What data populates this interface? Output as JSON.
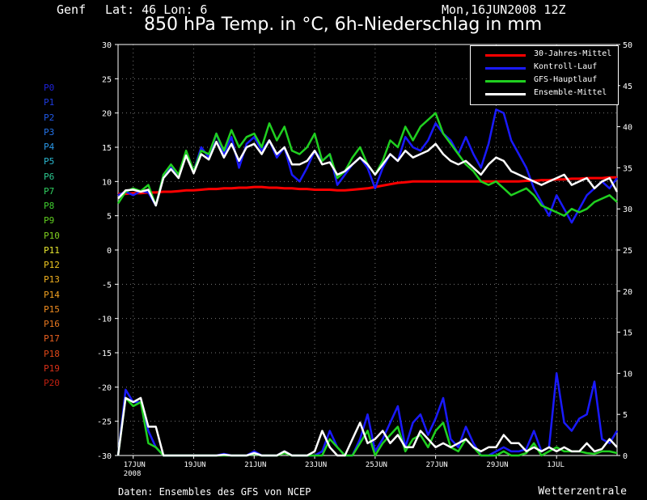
{
  "header": {
    "location": "Genf",
    "coords": "Lat: 46 Lon: 6",
    "run": "Mon,16JUN2008 12Z"
  },
  "title": "850 hPa Temp. in °C, 6h-Niederschlag in mm",
  "footer": {
    "source": "Daten: Ensembles des GFS von NCEP",
    "brand": "Wetterzentrale"
  },
  "members": [
    {
      "label": "P0",
      "color": "#1e22d8"
    },
    {
      "label": "P1",
      "color": "#1e3ce0"
    },
    {
      "label": "P2",
      "color": "#2058e6"
    },
    {
      "label": "P3",
      "color": "#2474ea"
    },
    {
      "label": "P4",
      "color": "#2a98e8"
    },
    {
      "label": "P5",
      "color": "#2ab8d0"
    },
    {
      "label": "P6",
      "color": "#2cc890"
    },
    {
      "label": "P7",
      "color": "#30d060"
    },
    {
      "label": "P8",
      "color": "#40d030"
    },
    {
      "label": "P9",
      "color": "#60d020"
    },
    {
      "label": "P10",
      "color": "#80d020"
    },
    {
      "label": "P11",
      "color": "#e8e830"
    },
    {
      "label": "P12",
      "color": "#f0c820"
    },
    {
      "label": "P13",
      "color": "#f0b020"
    },
    {
      "label": "P14",
      "color": "#f0a020"
    },
    {
      "label": "P15",
      "color": "#f08c20"
    },
    {
      "label": "P16",
      "color": "#e87820"
    },
    {
      "label": "P17",
      "color": "#e86020"
    },
    {
      "label": "P18",
      "color": "#e04818"
    },
    {
      "label": "P19",
      "color": "#d83018"
    },
    {
      "label": "P20",
      "color": "#c02010"
    }
  ],
  "legend": [
    {
      "label": "30-Jahres-Mittel",
      "color": "#ff0000"
    },
    {
      "label": "Kontroll-Lauf",
      "color": "#1a1aff"
    },
    {
      "label": "GFS-Hauptlauf",
      "color": "#20d020"
    },
    {
      "label": "Ensemble-Mittel",
      "color": "#ffffff"
    }
  ],
  "chart_data": {
    "type": "line",
    "title": "850 hPa Temp. in °C, 6h-Niederschlag in mm",
    "x_ticks": [
      "17JUN",
      "19JUN",
      "21JUN",
      "23JUN",
      "25JUN",
      "27JUN",
      "29JUN",
      "1JUL"
    ],
    "x_tick_sub": "2008",
    "y_left": {
      "min": -30,
      "max": 30,
      "step": 5
    },
    "y_right": {
      "min": 0,
      "max": 50,
      "step": 5
    },
    "grid": true,
    "steps_per_day": 4,
    "series": [
      {
        "name": "30-Jahres-Mittel",
        "axis": "left",
        "values": [
          8.2,
          8.2,
          8.3,
          8.3,
          8.4,
          8.4,
          8.5,
          8.5,
          8.6,
          8.7,
          8.7,
          8.8,
          8.9,
          8.9,
          9.0,
          9.0,
          9.1,
          9.1,
          9.2,
          9.2,
          9.1,
          9.1,
          9.0,
          9.0,
          8.9,
          8.9,
          8.8,
          8.8,
          8.8,
          8.7,
          8.7,
          8.8,
          8.9,
          9.0,
          9.2,
          9.4,
          9.6,
          9.8,
          9.9,
          10.0,
          10.0,
          10.0,
          10.0,
          10.0,
          10.0,
          10.0,
          10.0,
          10.0,
          10.0,
          10.0,
          10.0,
          10.0,
          10.0,
          10.0,
          10.1,
          10.1,
          10.2,
          10.2,
          10.3,
          10.3,
          10.4,
          10.4,
          10.5,
          10.5,
          10.5,
          10.6,
          10.6
        ]
      },
      {
        "name": "Kontroll-Lauf",
        "axis": "left",
        "values": [
          8.0,
          8.5,
          8.0,
          8.6,
          8.4,
          6.5,
          11.0,
          12.0,
          11.0,
          14.0,
          11.5,
          15.0,
          13.5,
          17.0,
          14.0,
          16.5,
          12.0,
          15.5,
          16.5,
          14.5,
          16.0,
          13.5,
          15.0,
          11.0,
          10.0,
          12.0,
          14.5,
          13.0,
          14.0,
          9.5,
          11.0,
          12.5,
          13.5,
          12.0,
          9.0,
          12.0,
          14.0,
          13.0,
          16.5,
          15.0,
          14.5,
          16.0,
          18.5,
          17.0,
          16.0,
          14.0,
          16.5,
          14.0,
          12.0,
          15.5,
          20.5,
          20.0,
          16.0,
          14.0,
          12.0,
          9.0,
          7.0,
          5.0,
          8.0,
          6.0,
          4.0,
          6.0,
          8.0,
          9.0,
          10.0,
          9.0,
          10.5
        ]
      },
      {
        "name": "GFS-Hauptlauf",
        "axis": "left",
        "values": [
          6.8,
          8.5,
          9.0,
          8.6,
          9.5,
          6.5,
          11.0,
          12.5,
          11.0,
          14.5,
          11.5,
          14.5,
          14.0,
          17.0,
          14.5,
          17.5,
          15.0,
          16.5,
          17.0,
          15.0,
          18.5,
          16.0,
          18.0,
          14.5,
          14.0,
          15.0,
          17.0,
          13.0,
          14.0,
          10.5,
          11.5,
          13.5,
          15.0,
          12.5,
          11.0,
          13.0,
          16.0,
          15.0,
          18.0,
          16.0,
          18.0,
          19.0,
          20.0,
          17.0,
          15.5,
          14.0,
          12.5,
          11.5,
          10.0,
          9.5,
          10.0,
          9.0,
          8.0,
          8.5,
          9.0,
          8.0,
          6.5,
          6.0,
          5.5,
          5.0,
          6.0,
          5.5,
          6.0,
          7.0,
          7.5,
          8.0,
          7.0
        ]
      },
      {
        "name": "Ensemble-Mittel",
        "axis": "left",
        "values": [
          7.5,
          8.7,
          8.8,
          8.5,
          8.8,
          6.5,
          10.5,
          11.8,
          10.5,
          13.8,
          11.2,
          14.0,
          13.2,
          15.8,
          13.5,
          15.5,
          13.0,
          15.0,
          15.5,
          14.0,
          16.0,
          14.0,
          15.0,
          12.5,
          12.5,
          13.0,
          14.5,
          12.5,
          12.8,
          11.0,
          11.5,
          12.5,
          13.5,
          12.5,
          11.0,
          12.5,
          14.0,
          13.0,
          14.5,
          13.5,
          14.0,
          14.5,
          15.5,
          14.0,
          13.0,
          12.5,
          13.0,
          12.0,
          11.0,
          12.5,
          13.5,
          13.0,
          11.5,
          11.0,
          10.5,
          10.0,
          9.5,
          10.0,
          10.5,
          11.0,
          9.5,
          10.0,
          10.5,
          9.0,
          10.0,
          10.5,
          8.5
        ]
      },
      {
        "name": "Kontroll-Lauf",
        "axis": "right",
        "values": [
          0,
          8.0,
          6.5,
          6.5,
          3.0,
          1.0,
          0,
          0,
          0,
          0,
          0,
          0,
          0,
          0,
          0.2,
          0,
          0,
          0,
          0.5,
          0,
          0,
          0,
          0.5,
          0,
          0,
          0,
          0,
          0.5,
          3.0,
          1.0,
          0,
          0,
          2.0,
          5.0,
          0.5,
          2.0,
          4.0,
          6.0,
          1.0,
          4.0,
          5.0,
          2.5,
          4.5,
          7.0,
          2.0,
          1.0,
          3.5,
          1.5,
          0,
          0,
          0.5,
          1.0,
          0.5,
          0.5,
          0.8,
          3.0,
          0.5,
          1.0,
          10.0,
          4.0,
          3.0,
          4.5,
          5.0,
          9.0,
          2.0,
          1.5,
          3.0
        ]
      },
      {
        "name": "GFS-Hauptlauf",
        "axis": "right",
        "values": [
          0,
          7.0,
          6.0,
          6.5,
          1.5,
          1.0,
          0,
          0,
          0,
          0,
          0,
          0,
          0,
          0,
          0,
          0,
          0,
          0,
          0.2,
          0,
          0,
          0,
          0.3,
          0,
          0,
          0,
          0,
          0,
          2.0,
          1.0,
          0,
          0,
          1.5,
          3.0,
          0,
          1.5,
          2.5,
          3.5,
          0.5,
          2.0,
          2.5,
          1.0,
          3.0,
          4.0,
          1.0,
          0.5,
          2.0,
          1.0,
          0,
          0,
          0,
          0.5,
          0,
          0,
          0.3,
          1.5,
          0,
          0.5,
          1.0,
          0.5,
          0.5,
          0.5,
          0.3,
          0.2,
          0.5,
          0.5,
          0.3
        ]
      },
      {
        "name": "Ensemble-Mittel",
        "axis": "right",
        "values": [
          0,
          7.0,
          6.5,
          7.0,
          3.5,
          3.5,
          0,
          0,
          0,
          0,
          0,
          0,
          0,
          0,
          0.1,
          0,
          0,
          0,
          0.3,
          0,
          0,
          0,
          0.5,
          0,
          0,
          0,
          0.5,
          3.0,
          1.0,
          0,
          0,
          2.0,
          4.0,
          1.5,
          2.0,
          3.0,
          1.5,
          2.5,
          1.0,
          1.0,
          3.0,
          2.0,
          1.0,
          1.5,
          1.0,
          1.5,
          2.0,
          1.0,
          0.5,
          1.0,
          1.0,
          2.5,
          1.5,
          1.5,
          0.5,
          1.0,
          0.5,
          1.0,
          0.5,
          1.0,
          0.5,
          0.5,
          1.5,
          0.5,
          0.8,
          2.0,
          1.0
        ]
      }
    ]
  }
}
